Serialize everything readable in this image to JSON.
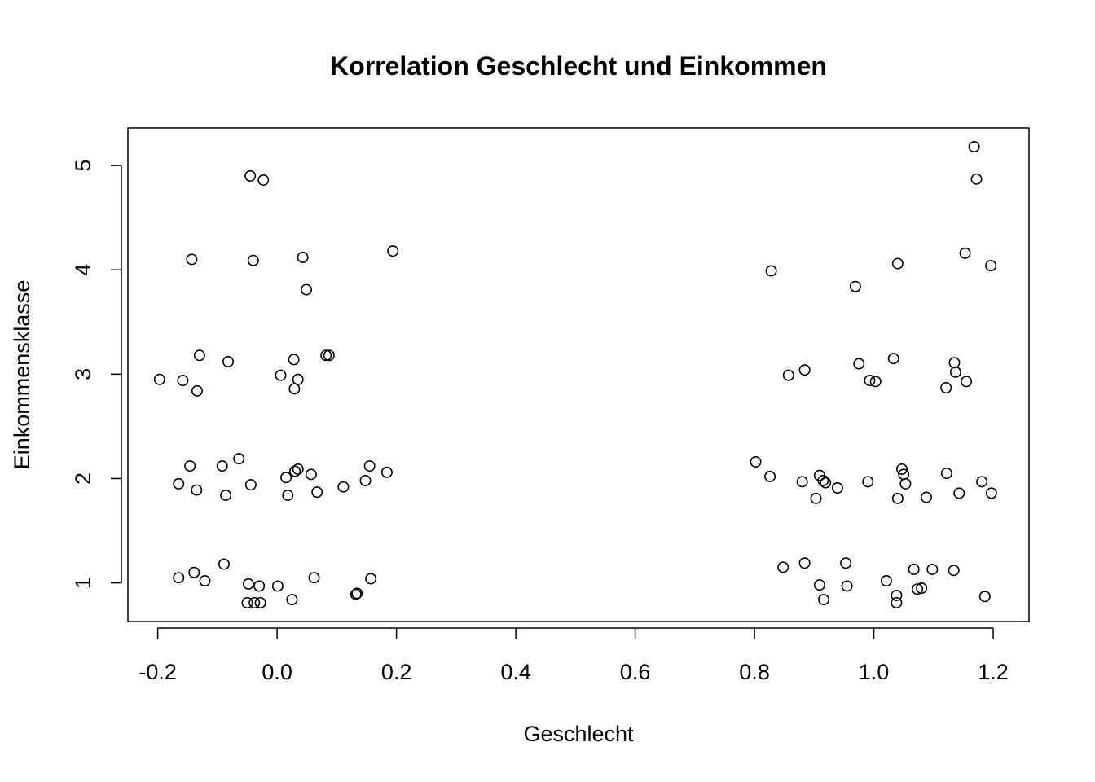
{
  "chart_data": {
    "type": "scatter",
    "title": "Korrelation Geschlecht und Einkommen",
    "xlabel": "Geschlecht",
    "ylabel": "Einkommensklasse",
    "xlim": [
      -0.25,
      1.26
    ],
    "ylim": [
      0.63,
      5.36
    ],
    "x_ticks": [
      -0.2,
      0.0,
      0.2,
      0.4,
      0.6,
      0.8,
      1.0,
      1.2
    ],
    "x_tick_labels": [
      "-0.2",
      "0.0",
      "0.2",
      "0.4",
      "0.6",
      "0.8",
      "1.0",
      "1.2"
    ],
    "y_ticks": [
      1,
      2,
      3,
      4,
      5
    ],
    "y_tick_labels": [
      "1",
      "2",
      "3",
      "4",
      "5"
    ],
    "marker": "open-circle",
    "color": "#000000",
    "points": [
      {
        "x": -0.045,
        "y": 4.9
      },
      {
        "x": -0.023,
        "y": 4.86
      },
      {
        "x": -0.143,
        "y": 4.1
      },
      {
        "x": -0.04,
        "y": 4.09
      },
      {
        "x": 0.043,
        "y": 4.12
      },
      {
        "x": 0.194,
        "y": 4.18
      },
      {
        "x": 0.049,
        "y": 3.81
      },
      {
        "x": -0.197,
        "y": 2.95
      },
      {
        "x": -0.158,
        "y": 2.94
      },
      {
        "x": -0.134,
        "y": 2.84
      },
      {
        "x": -0.13,
        "y": 3.18
      },
      {
        "x": -0.082,
        "y": 3.12
      },
      {
        "x": 0.006,
        "y": 2.99
      },
      {
        "x": 0.028,
        "y": 3.14
      },
      {
        "x": 0.029,
        "y": 2.86
      },
      {
        "x": 0.035,
        "y": 2.95
      },
      {
        "x": 0.082,
        "y": 3.18
      },
      {
        "x": 0.087,
        "y": 3.18
      },
      {
        "x": -0.165,
        "y": 1.95
      },
      {
        "x": -0.146,
        "y": 2.12
      },
      {
        "x": -0.135,
        "y": 1.89
      },
      {
        "x": -0.092,
        "y": 2.12
      },
      {
        "x": -0.086,
        "y": 1.84
      },
      {
        "x": -0.064,
        "y": 2.19
      },
      {
        "x": -0.044,
        "y": 1.94
      },
      {
        "x": 0.015,
        "y": 2.01
      },
      {
        "x": 0.018,
        "y": 1.84
      },
      {
        "x": 0.03,
        "y": 2.07
      },
      {
        "x": 0.035,
        "y": 2.09
      },
      {
        "x": 0.057,
        "y": 2.04
      },
      {
        "x": 0.067,
        "y": 1.87
      },
      {
        "x": 0.111,
        "y": 1.92
      },
      {
        "x": 0.148,
        "y": 1.98
      },
      {
        "x": 0.155,
        "y": 2.12
      },
      {
        "x": 0.184,
        "y": 2.06
      },
      {
        "x": -0.165,
        "y": 1.05
      },
      {
        "x": -0.139,
        "y": 1.1
      },
      {
        "x": -0.121,
        "y": 1.02
      },
      {
        "x": -0.089,
        "y": 1.18
      },
      {
        "x": -0.048,
        "y": 0.99
      },
      {
        "x": -0.05,
        "y": 0.81
      },
      {
        "x": -0.038,
        "y": 0.81
      },
      {
        "x": -0.03,
        "y": 0.97
      },
      {
        "x": -0.028,
        "y": 0.81
      },
      {
        "x": 0.001,
        "y": 0.97
      },
      {
        "x": 0.025,
        "y": 0.84
      },
      {
        "x": 0.062,
        "y": 1.05
      },
      {
        "x": 0.132,
        "y": 0.89
      },
      {
        "x": 0.134,
        "y": 0.9
      },
      {
        "x": 0.157,
        "y": 1.04
      },
      {
        "x": 1.168,
        "y": 5.18
      },
      {
        "x": 1.172,
        "y": 4.87
      },
      {
        "x": 0.828,
        "y": 3.99
      },
      {
        "x": 0.969,
        "y": 3.84
      },
      {
        "x": 1.04,
        "y": 4.06
      },
      {
        "x": 1.153,
        "y": 4.16
      },
      {
        "x": 1.196,
        "y": 4.04
      },
      {
        "x": 0.857,
        "y": 2.99
      },
      {
        "x": 0.884,
        "y": 3.04
      },
      {
        "x": 0.975,
        "y": 3.1
      },
      {
        "x": 0.993,
        "y": 2.94
      },
      {
        "x": 1.003,
        "y": 2.93
      },
      {
        "x": 1.033,
        "y": 3.15
      },
      {
        "x": 1.121,
        "y": 2.87
      },
      {
        "x": 1.135,
        "y": 3.11
      },
      {
        "x": 1.137,
        "y": 3.02
      },
      {
        "x": 1.155,
        "y": 2.93
      },
      {
        "x": 0.802,
        "y": 2.16
      },
      {
        "x": 0.826,
        "y": 2.02
      },
      {
        "x": 0.88,
        "y": 1.97
      },
      {
        "x": 0.903,
        "y": 1.81
      },
      {
        "x": 0.909,
        "y": 2.03
      },
      {
        "x": 0.915,
        "y": 1.98
      },
      {
        "x": 0.919,
        "y": 1.96
      },
      {
        "x": 0.939,
        "y": 1.91
      },
      {
        "x": 0.99,
        "y": 1.97
      },
      {
        "x": 1.04,
        "y": 1.81
      },
      {
        "x": 1.047,
        "y": 2.09
      },
      {
        "x": 1.05,
        "y": 2.04
      },
      {
        "x": 1.053,
        "y": 1.95
      },
      {
        "x": 1.088,
        "y": 1.82
      },
      {
        "x": 1.122,
        "y": 2.05
      },
      {
        "x": 1.143,
        "y": 1.86
      },
      {
        "x": 1.181,
        "y": 1.97
      },
      {
        "x": 1.197,
        "y": 1.86
      },
      {
        "x": 0.848,
        "y": 1.15
      },
      {
        "x": 0.884,
        "y": 1.19
      },
      {
        "x": 0.909,
        "y": 0.98
      },
      {
        "x": 0.916,
        "y": 0.84
      },
      {
        "x": 0.953,
        "y": 1.19
      },
      {
        "x": 0.955,
        "y": 0.97
      },
      {
        "x": 1.021,
        "y": 1.02
      },
      {
        "x": 1.038,
        "y": 0.88
      },
      {
        "x": 1.038,
        "y": 0.81
      },
      {
        "x": 1.067,
        "y": 1.13
      },
      {
        "x": 1.073,
        "y": 0.94
      },
      {
        "x": 1.08,
        "y": 0.95
      },
      {
        "x": 1.098,
        "y": 1.13
      },
      {
        "x": 1.134,
        "y": 1.12
      },
      {
        "x": 1.186,
        "y": 0.87
      }
    ]
  }
}
